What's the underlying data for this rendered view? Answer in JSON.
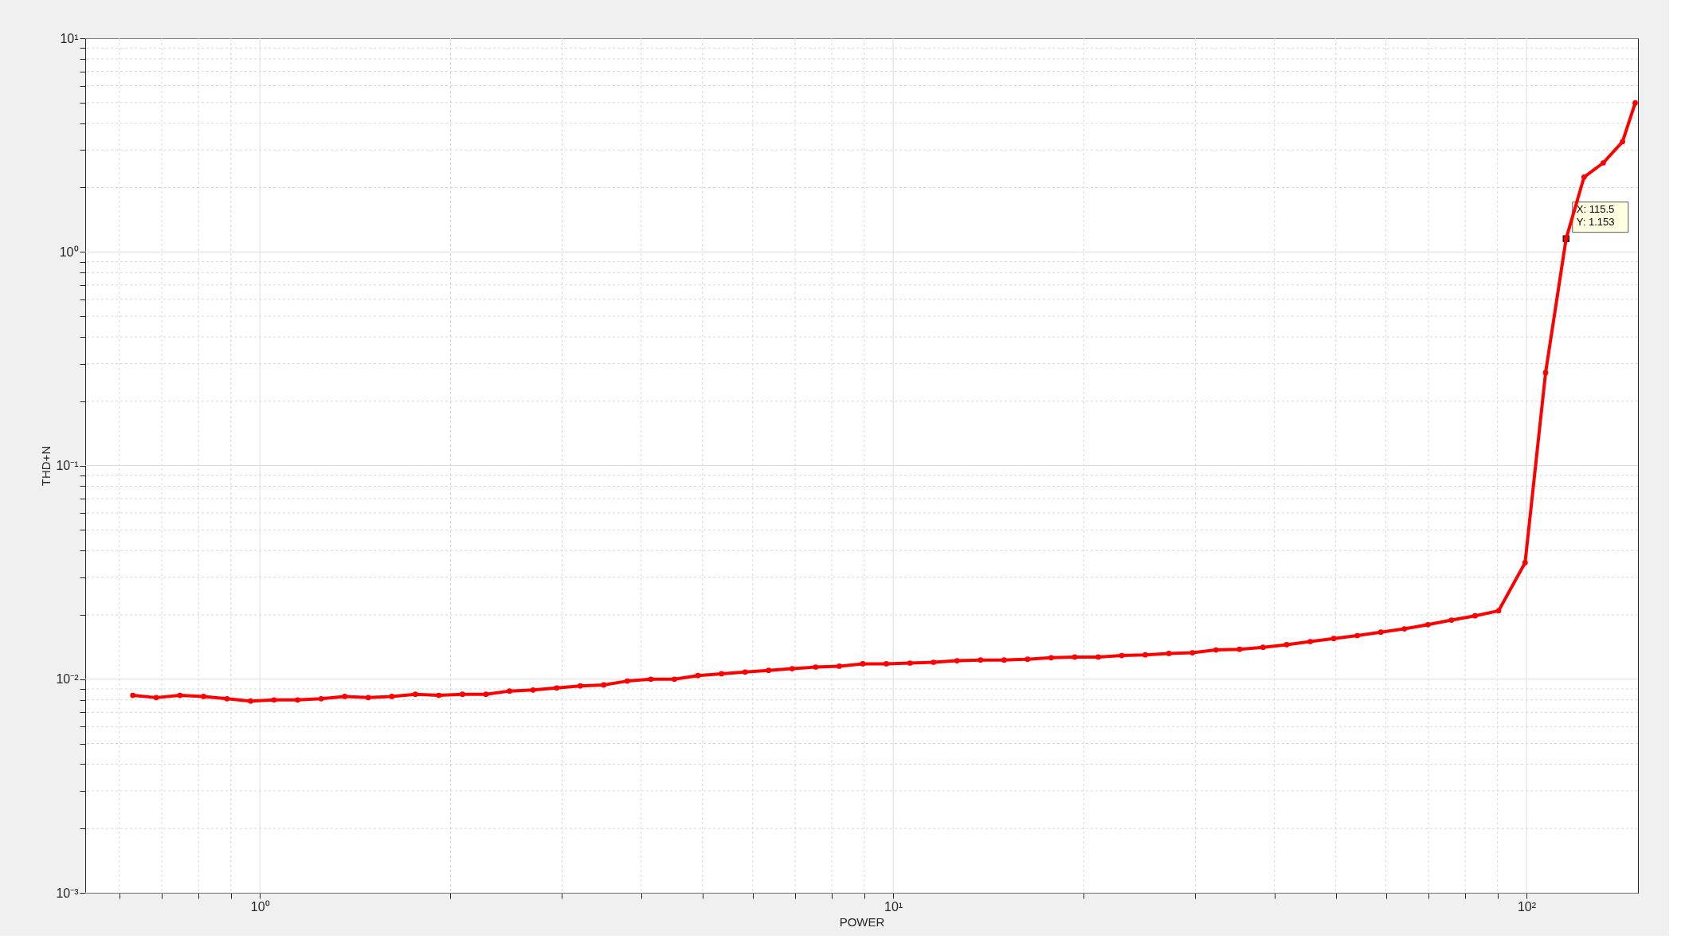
{
  "chart_data": {
    "type": "line",
    "xlabel": "POWER",
    "ylabel": "THD+N",
    "log": "xy",
    "grid": true,
    "marker": "circle",
    "line_style": "solid",
    "x": [
      0.63,
      0.686,
      0.748,
      0.815,
      0.887,
      0.967,
      1.053,
      1.147,
      1.25,
      1.361,
      1.483,
      1.616,
      1.76,
      1.917,
      2.089,
      2.275,
      2.479,
      2.7,
      2.942,
      3.205,
      3.491,
      3.803,
      4.143,
      4.514,
      4.917,
      5.357,
      5.836,
      6.357,
      6.926,
      7.545,
      8.219,
      8.954,
      9.754,
      10.63,
      11.58,
      12.61,
      13.74,
      14.97,
      16.3,
      17.76,
      19.35,
      21.08,
      22.96,
      25.01,
      27.25,
      29.69,
      32.34,
      35.23,
      38.38,
      41.81,
      45.55,
      49.62,
      54.06,
      58.89,
      64.16,
      69.89,
      76.14,
      82.95,
      90.36,
      99.5,
      107.2,
      115.5,
      123.3,
      132.2,
      141.8,
      148.5
    ],
    "series": [
      {
        "color": "#ff0000",
        "values": [
          0.0084,
          0.0082,
          0.0084,
          0.0083,
          0.0081,
          0.0079,
          0.008,
          0.008,
          0.0081,
          0.0083,
          0.0082,
          0.0083,
          0.0085,
          0.0084,
          0.0085,
          0.0085,
          0.0088,
          0.0089,
          0.0091,
          0.0093,
          0.0094,
          0.0098,
          0.01,
          0.01,
          0.0104,
          0.0106,
          0.0108,
          0.011,
          0.0112,
          0.0114,
          0.0115,
          0.0118,
          0.0118,
          0.0119,
          0.012,
          0.0122,
          0.0123,
          0.0123,
          0.0124,
          0.0126,
          0.0127,
          0.0127,
          0.0129,
          0.013,
          0.0132,
          0.0133,
          0.0137,
          0.0138,
          0.0141,
          0.0145,
          0.015,
          0.0155,
          0.016,
          0.0166,
          0.0172,
          0.018,
          0.0189,
          0.0198,
          0.0209,
          0.0351,
          0.272,
          1.153,
          2.24,
          2.61,
          3.28,
          4.98
        ]
      }
    ],
    "xlim": [
      0.53,
      150
    ],
    "xticks": [
      {
        "value": 0.6,
        "label": null
      },
      {
        "value": 0.7,
        "label": null
      },
      {
        "value": 0.8,
        "label": null
      },
      {
        "value": 0.9,
        "label": null
      },
      {
        "value": 1,
        "label": "10⁰"
      },
      {
        "value": 2,
        "label": null
      },
      {
        "value": 3,
        "label": null
      },
      {
        "value": 4,
        "label": null
      },
      {
        "value": 5,
        "label": null
      },
      {
        "value": 6,
        "label": null
      },
      {
        "value": 7,
        "label": null
      },
      {
        "value": 8,
        "label": null
      },
      {
        "value": 9,
        "label": null
      },
      {
        "value": 10,
        "label": "10¹"
      },
      {
        "value": 20,
        "label": null
      },
      {
        "value": 30,
        "label": null
      },
      {
        "value": 40,
        "label": null
      },
      {
        "value": 50,
        "label": null
      },
      {
        "value": 60,
        "label": null
      },
      {
        "value": 70,
        "label": null
      },
      {
        "value": 80,
        "label": null
      },
      {
        "value": 90,
        "label": null
      },
      {
        "value": 100,
        "label": "10²"
      }
    ],
    "ylim": [
      0.001,
      10
    ],
    "yticks": [
      {
        "value": 0.001,
        "label": "10⁻³"
      },
      {
        "value": 0.002,
        "label": null
      },
      {
        "value": 0.003,
        "label": null
      },
      {
        "value": 0.004,
        "label": null
      },
      {
        "value": 0.005,
        "label": null
      },
      {
        "value": 0.006,
        "label": null
      },
      {
        "value": 0.007,
        "label": null
      },
      {
        "value": 0.008,
        "label": null
      },
      {
        "value": 0.009,
        "label": null
      },
      {
        "value": 0.01,
        "label": "10⁻²"
      },
      {
        "value": 0.02,
        "label": null
      },
      {
        "value": 0.03,
        "label": null
      },
      {
        "value": 0.04,
        "label": null
      },
      {
        "value": 0.05,
        "label": null
      },
      {
        "value": 0.06,
        "label": null
      },
      {
        "value": 0.07,
        "label": null
      },
      {
        "value": 0.08,
        "label": null
      },
      {
        "value": 0.09,
        "label": null
      },
      {
        "value": 0.1,
        "label": "10⁻¹"
      },
      {
        "value": 0.2,
        "label": null
      },
      {
        "value": 0.3,
        "label": null
      },
      {
        "value": 0.4,
        "label": null
      },
      {
        "value": 0.5,
        "label": null
      },
      {
        "value": 0.6,
        "label": null
      },
      {
        "value": 0.7,
        "label": null
      },
      {
        "value": 0.8,
        "label": null
      },
      {
        "value": 0.9,
        "label": null
      },
      {
        "value": 1,
        "label": "10⁰"
      },
      {
        "value": 2,
        "label": null
      },
      {
        "value": 3,
        "label": null
      },
      {
        "value": 4,
        "label": null
      },
      {
        "value": 5,
        "label": null
      },
      {
        "value": 6,
        "label": null
      },
      {
        "value": 7,
        "label": null
      },
      {
        "value": 8,
        "label": null
      },
      {
        "value": 9,
        "label": null
      },
      {
        "value": 10,
        "label": "10¹"
      }
    ],
    "annotations": [
      {
        "text": "X: 115.5\nY: 1.153",
        "x": 115.5,
        "y": 1.153
      }
    ]
  }
}
